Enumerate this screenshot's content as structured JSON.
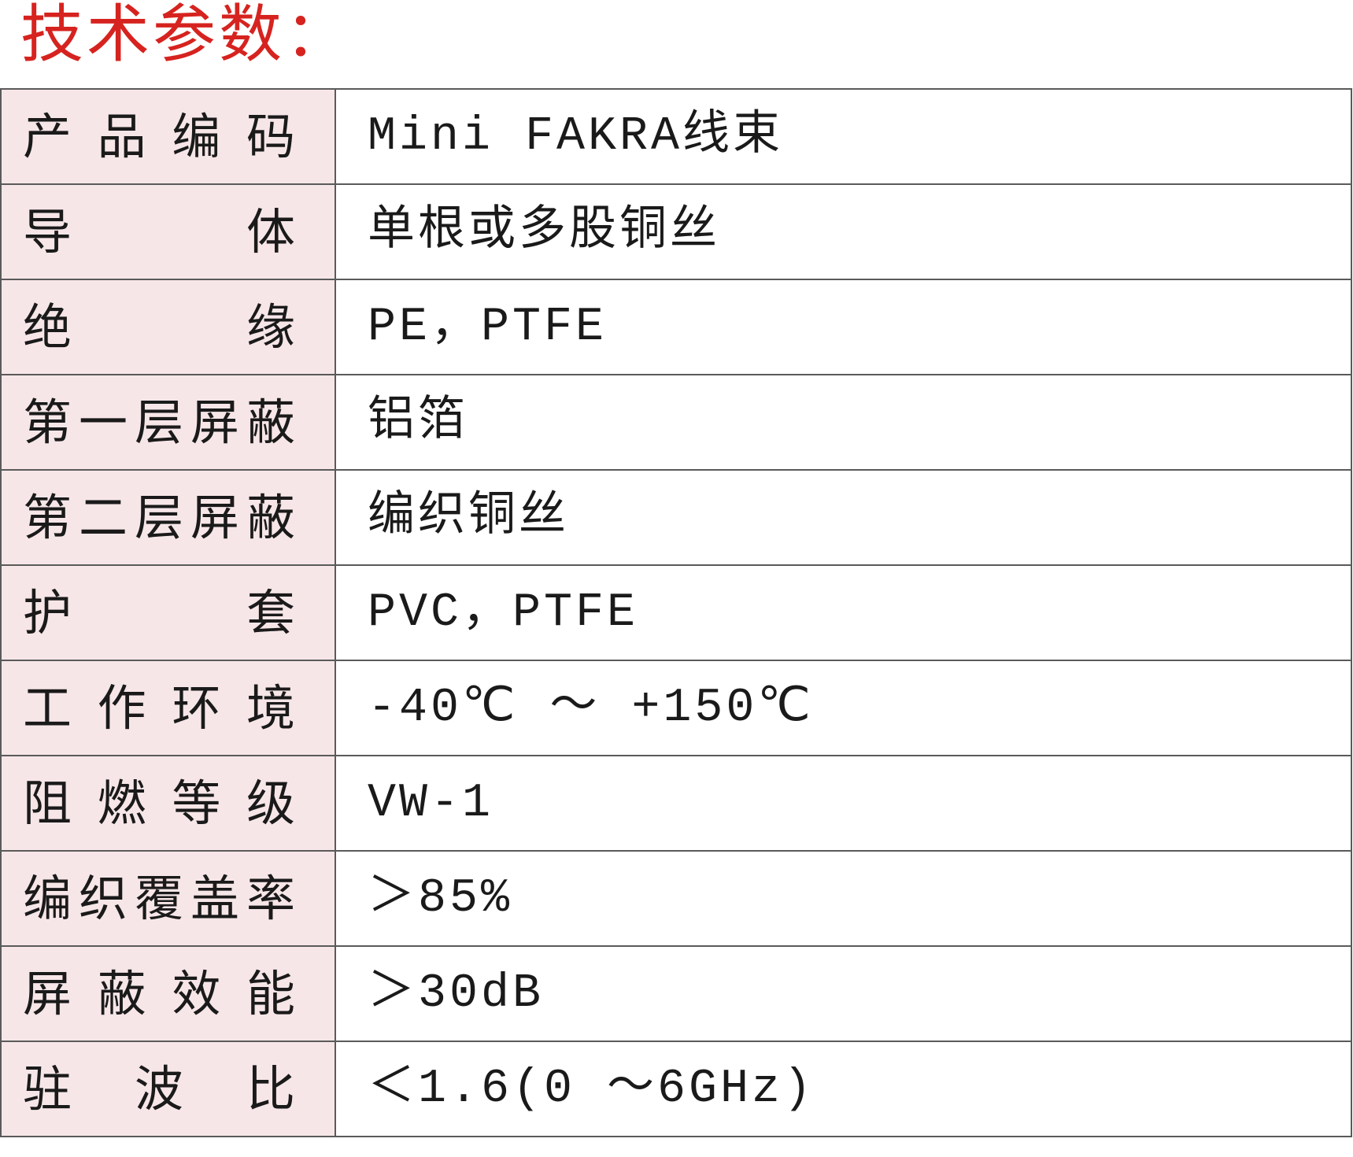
{
  "title": "技术参数：",
  "colors": {
    "title": "#d6231f",
    "label_bg": "#f7e6e8",
    "border": "#5a5a5a"
  },
  "rows": [
    {
      "label": "产品编码",
      "value": "Mini FAKRA线束"
    },
    {
      "label": "导体",
      "value": "单根或多股铜丝"
    },
    {
      "label": "绝缘",
      "value": "PE，PTFE"
    },
    {
      "label": "第一层屏蔽",
      "value": "铝箔"
    },
    {
      "label": "第二层屏蔽",
      "value": "编织铜丝"
    },
    {
      "label": "护套",
      "value": "PVC，PTFE"
    },
    {
      "label": "工作环境",
      "value": "-40℃ ～ +150℃"
    },
    {
      "label": "阻燃等级",
      "value": "VW-1"
    },
    {
      "label": "编织覆盖率",
      "value": "＞85%"
    },
    {
      "label": "屏蔽效能",
      "value": "＞30dB"
    },
    {
      "label": "驻波比",
      "value": "＜1.6(0 ～6GHz)"
    }
  ]
}
